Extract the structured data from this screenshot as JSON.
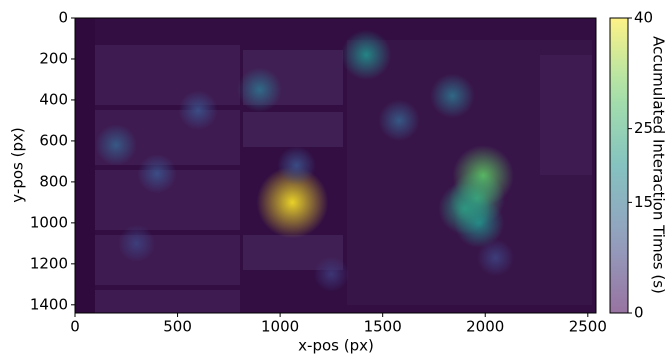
{
  "chart_data": {
    "type": "heatmap",
    "xlabel": "x-pos (px)",
    "ylabel": "y-pos (px)",
    "xlim": [
      0,
      2540
    ],
    "ylim": [
      1440,
      0
    ],
    "xticks": [
      0,
      500,
      1000,
      1500,
      2000,
      2500
    ],
    "yticks": [
      0,
      200,
      400,
      600,
      800,
      1000,
      1200,
      1400
    ],
    "x": [
      1060,
      1990,
      1960,
      1970,
      1900,
      1420,
      1840,
      1580,
      200,
      400,
      600,
      900,
      1080,
      2050,
      300,
      1250
    ],
    "y": [
      900,
      770,
      880,
      1000,
      930,
      180,
      380,
      500,
      620,
      760,
      450,
      350,
      720,
      1170,
      1100,
      1250
    ],
    "values": [
      40,
      30,
      25,
      20,
      22,
      20,
      15,
      12,
      12,
      10,
      10,
      15,
      10,
      8,
      8,
      7
    ],
    "colormap": "viridis",
    "colorbar": {
      "label": "Accumulated Interaction Times (s)",
      "lim": [
        0,
        40
      ],
      "ticks": [
        0,
        15,
        25,
        40
      ]
    }
  }
}
